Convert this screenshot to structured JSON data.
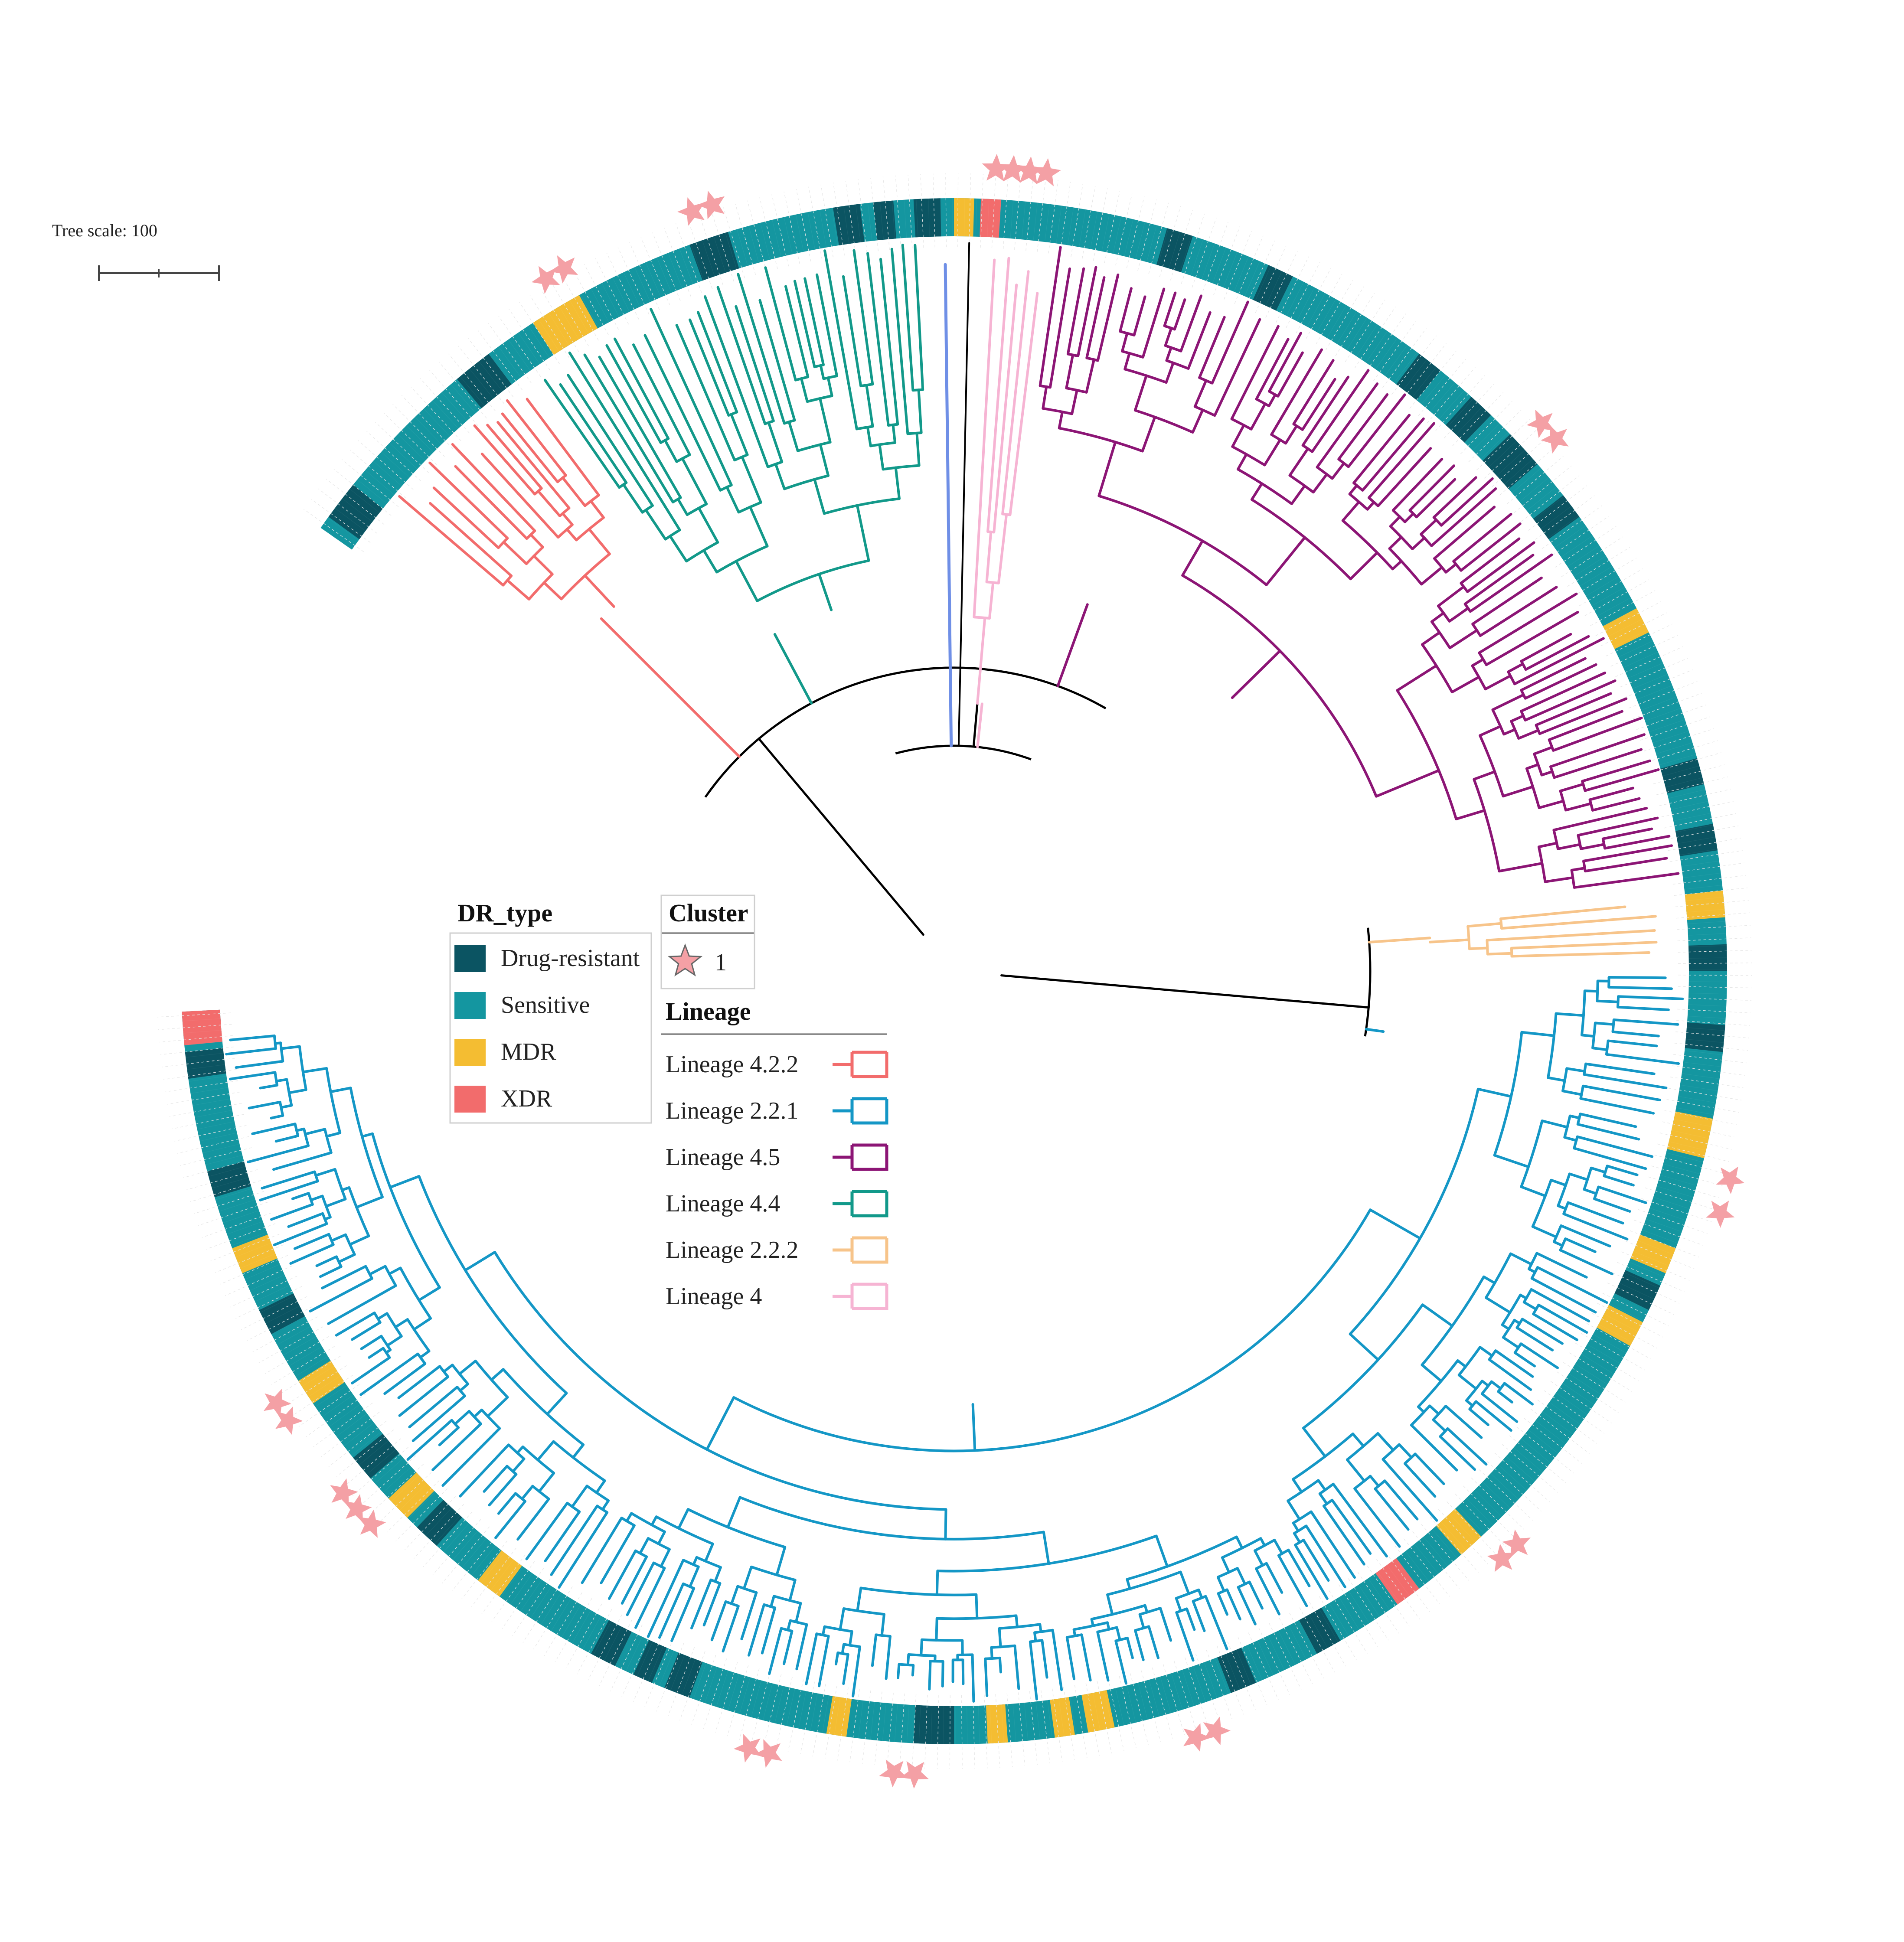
{
  "tree_scale": {
    "label": "Tree scale: 100"
  },
  "colors": {
    "drug_resistant": "#0b5462",
    "sensitive": "#1496a0",
    "mdr": "#f4bd32",
    "xdr": "#f26c6c",
    "lineage_4_2_2": "#f26c6c",
    "lineage_2_2_1": "#1497c6",
    "lineage_4_5": "#8c1575",
    "lineage_4_4": "#12998a",
    "lineage_2_2_2": "#f7c48a",
    "lineage_4": "#f6b4d3",
    "reference": "#6f8fe6",
    "backbone": "#000000",
    "star": "#f4a0a5"
  },
  "legend_dr": {
    "title": "DR_type",
    "items": [
      {
        "label": "Drug-resistant",
        "color_key": "drug_resistant"
      },
      {
        "label": "Sensitive",
        "color_key": "sensitive"
      },
      {
        "label": "MDR",
        "color_key": "mdr"
      },
      {
        "label": "XDR",
        "color_key": "xdr"
      }
    ]
  },
  "legend_cluster": {
    "title": "Cluster",
    "items": [
      {
        "label": "1",
        "icon": "star-icon"
      }
    ]
  },
  "legend_lineage": {
    "title": "Lineage",
    "items": [
      {
        "label": "Lineage 4.2.2",
        "color_key": "lineage_4_2_2"
      },
      {
        "label": "Lineage 2.2.1",
        "color_key": "lineage_2_2_1"
      },
      {
        "label": "Lineage 4.5",
        "color_key": "lineage_4_5"
      },
      {
        "label": "Lineage 4.4",
        "color_key": "lineage_4_4"
      },
      {
        "label": "Lineage 2.2.2",
        "color_key": "lineage_2_2_2"
      },
      {
        "label": "Lineage 4",
        "color_key": "lineage_4"
      }
    ]
  }
}
